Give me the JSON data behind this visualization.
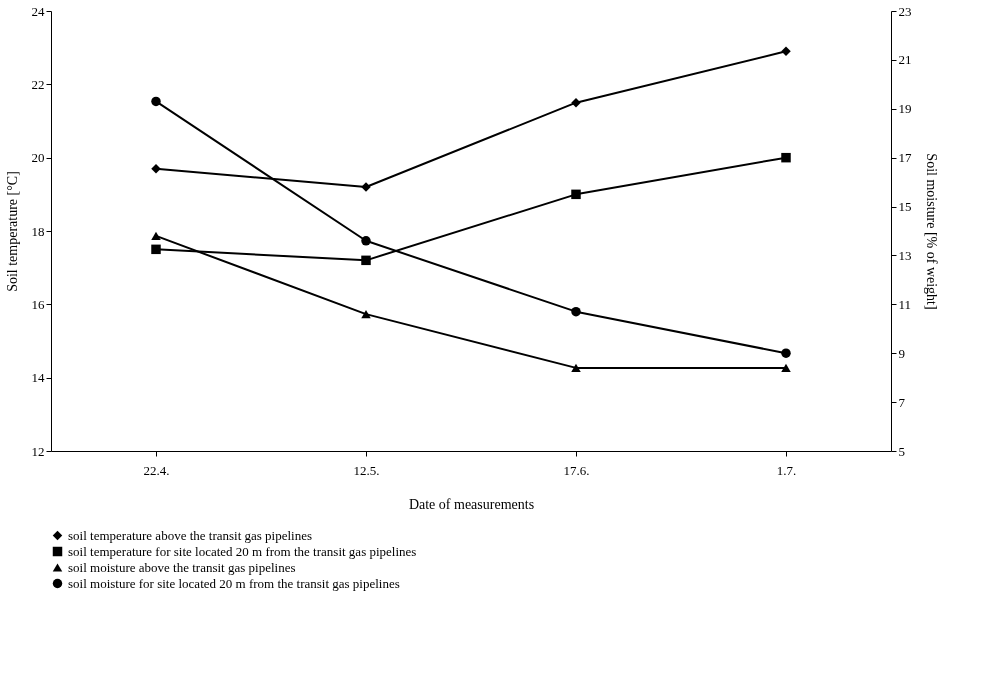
{
  "chart_data": {
    "type": "line",
    "xlabel": "Date of measurements",
    "ylabel": "Soil temperature [°C]",
    "y2label": "Soil moisture [% of weight]",
    "categories": [
      "22.4.",
      "12.5.",
      "17.6.",
      "1.7."
    ],
    "ylim": [
      12,
      24
    ],
    "yticks": [
      12,
      14,
      16,
      18,
      20,
      22,
      24
    ],
    "y2lim": [
      5,
      23
    ],
    "y2ticks": [
      5,
      7,
      9,
      11,
      13,
      15,
      17,
      19,
      21,
      23
    ],
    "legend": "bottom",
    "line_style": "solid",
    "series": [
      {
        "name": "soil temperature above the transit gas pipelines",
        "color": "#000000",
        "marker": "diamond",
        "axis": "y",
        "values": [
          19.7,
          19.2,
          21.5,
          22.9
        ]
      },
      {
        "name": "soil temperature for site located 20 m from the transit gas pipelines",
        "color": "#000000",
        "marker": "square",
        "axis": "y",
        "values": [
          17.5,
          17.2,
          19.0,
          20.0
        ]
      },
      {
        "name": "soil moisture above the transit gas pipelines",
        "color": "#000000",
        "marker": "triangle",
        "axis": "y2",
        "values": [
          13.8,
          10.6,
          8.4,
          8.4
        ]
      },
      {
        "name": "soil moisture for site located 20 m from the transit gas pipelines",
        "color": "#000000",
        "marker": "circle",
        "axis": "y2",
        "values": [
          19.3,
          13.6,
          10.7,
          9.0
        ]
      }
    ]
  }
}
